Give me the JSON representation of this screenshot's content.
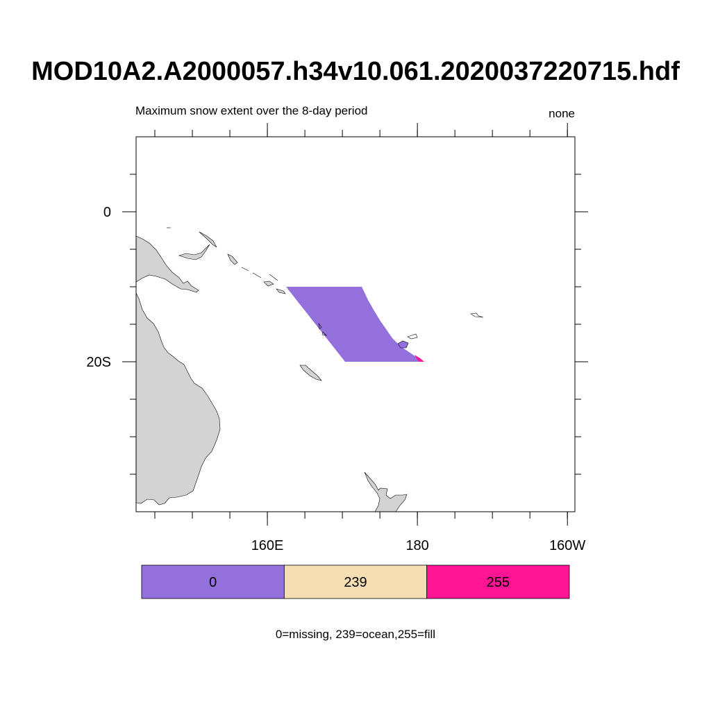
{
  "title": "MOD10A2.A2000057.h34v10.061.2020037220715.hdf",
  "subtitle_left": "Maximum snow extent over the 8-day period",
  "subtitle_right": "none",
  "map": {
    "projection": "cylindrical-equidistant",
    "lon_range": [
      142.5,
      201
    ],
    "lat_range": [
      -40,
      10
    ],
    "lon_ticks": [
      {
        "value": 160,
        "label": "160E"
      },
      {
        "value": 180,
        "label": "180"
      },
      {
        "value": 200,
        "label": "160W"
      }
    ],
    "lat_ticks": [
      {
        "value": 0,
        "label": "0"
      },
      {
        "value": -20,
        "label": "20S"
      }
    ],
    "land_color": "#d3d3d3",
    "coast_color": "#000000"
  },
  "chart_data": {
    "type": "heatmap",
    "title": "MOD10A2.A2000057.h34v10.061.2020037220715.hdf",
    "subtitle": "Maximum snow extent over the 8-day period",
    "units": "none",
    "tile": "h34v10",
    "tile_lat_range": [
      -20,
      -10
    ],
    "regions": [
      {
        "value": 0,
        "category": "missing",
        "color": "#9370db"
      },
      {
        "value": 255,
        "category": "fill",
        "color": "#ff1493"
      }
    ],
    "colorbar": [
      {
        "value": "0",
        "color": "#9370db"
      },
      {
        "value": "239",
        "color": "#f5deb3"
      },
      {
        "value": "255",
        "color": "#ff1493"
      }
    ],
    "legend_caption": "0=missing, 239=ocean,255=fill"
  }
}
